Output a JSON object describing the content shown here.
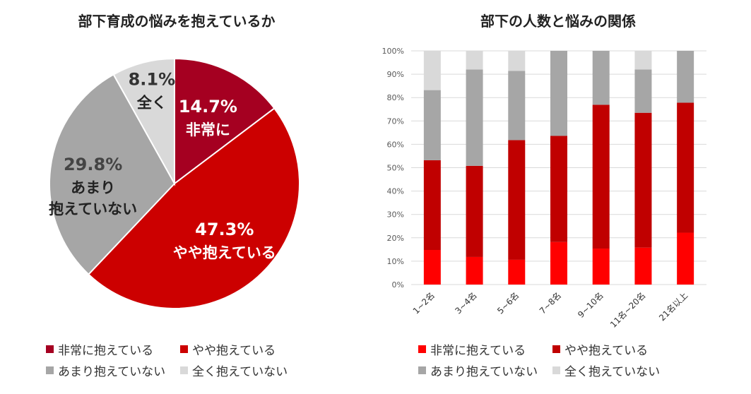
{
  "chart_data": [
    {
      "type": "pie",
      "title": "部下育成の悩みを抱えているか",
      "slices": [
        {
          "name": "非常に抱えている",
          "short": "非常に",
          "value": 14.7,
          "label": "14.7%",
          "color": "#A50021"
        },
        {
          "name": "やや抱えている",
          "short": "やや抱えている",
          "value": 47.3,
          "label": "47.3%",
          "color": "#CC0000"
        },
        {
          "name": "あまり抱えていない",
          "short": "あまり\n抱えていない",
          "value": 29.8,
          "label": "29.8%",
          "color": "#A6A6A6"
        },
        {
          "name": "全く抱えていない",
          "short": "全く",
          "value": 8.1,
          "label": "8.1%",
          "color": "#D9D9D9"
        }
      ],
      "legend": "bottom"
    },
    {
      "type": "bar",
      "stacked": true,
      "title": "部下の人数と悩みの関係",
      "categories": [
        "1~2名",
        "3~4名",
        "5~6名",
        "7~8名",
        "9~10名",
        "11名~20名",
        "21名以上"
      ],
      "ylim": [
        0,
        100
      ],
      "yticks": [
        "0%",
        "10%",
        "20%",
        "30%",
        "40%",
        "50%",
        "60%",
        "70%",
        "80%",
        "90%",
        "100%"
      ],
      "grid": true,
      "legend": "bottom",
      "series": [
        {
          "name": "非常に抱えている",
          "color": "#FF0000",
          "values": [
            14.8,
            11.8,
            10.6,
            18.2,
            15.4,
            15.8,
            22.2
          ]
        },
        {
          "name": "やや抱えている",
          "color": "#C00000",
          "values": [
            38.4,
            39.0,
            51.2,
            45.4,
            61.5,
            57.7,
            55.6
          ]
        },
        {
          "name": "あまり抱えていない",
          "color": "#A6A6A6",
          "values": [
            30.0,
            41.2,
            29.6,
            36.4,
            23.1,
            18.5,
            22.2
          ]
        },
        {
          "name": "全く抱えていない",
          "color": "#D9D9D9",
          "values": [
            16.8,
            8.0,
            8.6,
            0,
            0,
            8.0,
            0
          ]
        }
      ]
    }
  ]
}
